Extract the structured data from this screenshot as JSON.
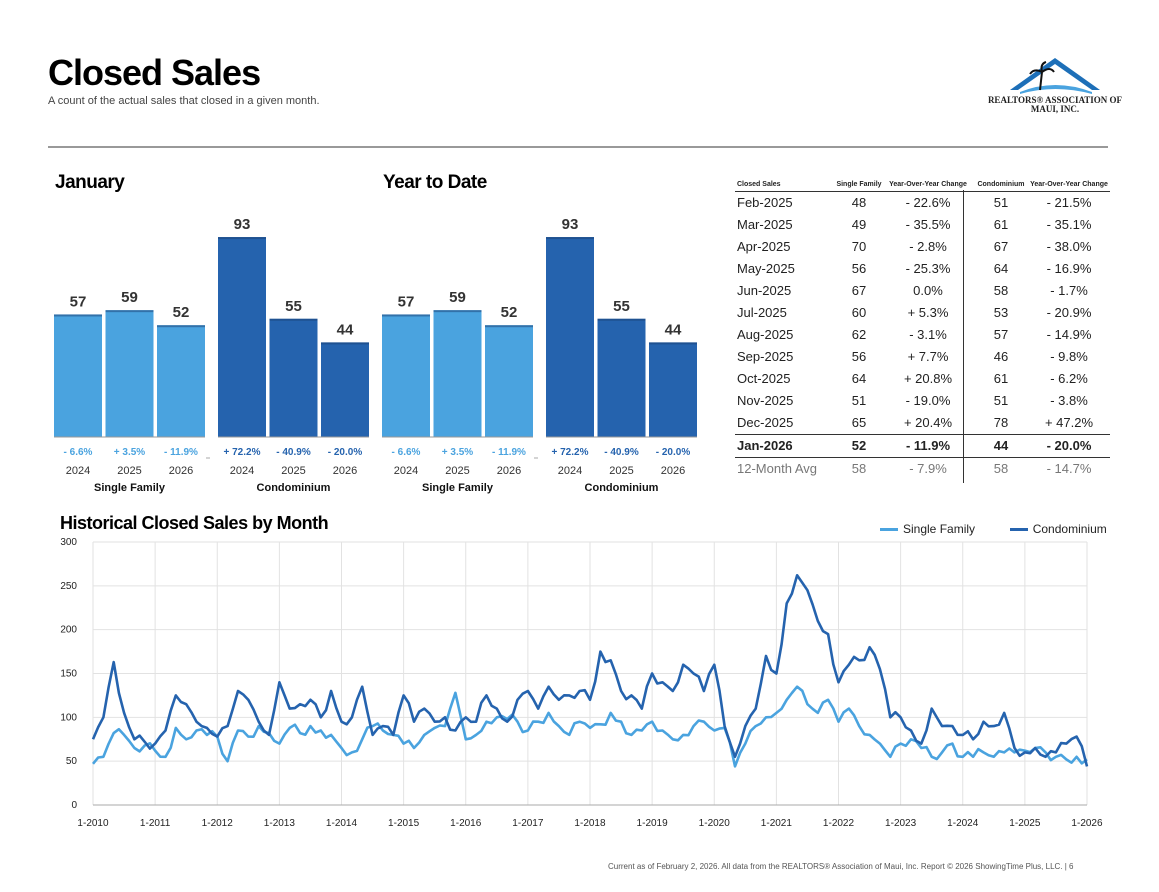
{
  "header": {
    "title": "Closed Sales",
    "subtitle": "A count of the actual sales that closed in a given month.",
    "logo_text": "REALTORS® ASSOCIATION OF MAUI, INC."
  },
  "colors": {
    "single_family": "#4aa3df",
    "condominium": "#2563ae"
  },
  "footer": "Current as of February 2, 2026. All data from the REALTORS® Association of Maui, Inc. Report © 2026 ShowingTime Plus, LLC.  |  6",
  "chart_data": [
    {
      "type": "bar",
      "title": "January",
      "groups": [
        {
          "name": "Single Family",
          "categories": [
            "2024",
            "2025",
            "2026"
          ],
          "values": [
            57,
            59,
            52
          ],
          "changes": [
            "- 6.6%",
            "+ 3.5%",
            "- 11.9%"
          ]
        },
        {
          "name": "Condominium",
          "categories": [
            "2024",
            "2025",
            "2026"
          ],
          "values": [
            93,
            55,
            44
          ],
          "changes": [
            "+ 72.2%",
            "- 40.9%",
            "- 20.0%"
          ]
        }
      ]
    },
    {
      "type": "bar",
      "title": "Year to Date",
      "groups": [
        {
          "name": "Single Family",
          "categories": [
            "2024",
            "2025",
            "2026"
          ],
          "values": [
            57,
            59,
            52
          ],
          "changes": [
            "- 6.6%",
            "+ 3.5%",
            "- 11.9%"
          ]
        },
        {
          "name": "Condominium",
          "categories": [
            "2024",
            "2025",
            "2026"
          ],
          "values": [
            93,
            55,
            44
          ],
          "changes": [
            "+ 72.2%",
            "- 40.9%",
            "- 20.0%"
          ]
        }
      ]
    },
    {
      "type": "table",
      "columns": [
        "Closed Sales",
        "Single Family",
        "Year-Over-Year Change",
        "Condominium",
        "Year-Over-Year Change"
      ],
      "rows": [
        [
          "Feb-2025",
          "48",
          "- 22.6%",
          "51",
          "- 21.5%"
        ],
        [
          "Mar-2025",
          "49",
          "- 35.5%",
          "61",
          "- 35.1%"
        ],
        [
          "Apr-2025",
          "70",
          "- 2.8%",
          "67",
          "- 38.0%"
        ],
        [
          "May-2025",
          "56",
          "- 25.3%",
          "64",
          "- 16.9%"
        ],
        [
          "Jun-2025",
          "67",
          "0.0%",
          "58",
          "- 1.7%"
        ],
        [
          "Jul-2025",
          "60",
          "+ 5.3%",
          "53",
          "- 20.9%"
        ],
        [
          "Aug-2025",
          "62",
          "- 3.1%",
          "57",
          "- 14.9%"
        ],
        [
          "Sep-2025",
          "56",
          "+ 7.7%",
          "46",
          "- 9.8%"
        ],
        [
          "Oct-2025",
          "64",
          "+ 20.8%",
          "61",
          "- 6.2%"
        ],
        [
          "Nov-2025",
          "51",
          "- 19.0%",
          "51",
          "- 3.8%"
        ],
        [
          "Dec-2025",
          "65",
          "+ 20.4%",
          "78",
          "+ 47.2%"
        ],
        [
          "Jan-2026",
          "52",
          "- 11.9%",
          "44",
          "- 20.0%"
        ]
      ],
      "avg_row": [
        "12-Month Avg",
        "58",
        "- 7.9%",
        "58",
        "- 14.7%"
      ]
    },
    {
      "type": "line",
      "title": "Historical Closed Sales by Month",
      "ylim": [
        0,
        300
      ],
      "yticks": [
        0,
        50,
        100,
        150,
        200,
        250,
        300
      ],
      "xlabels": [
        "1-2010",
        "1-2011",
        "1-2012",
        "1-2013",
        "1-2014",
        "1-2015",
        "1-2016",
        "1-2017",
        "1-2018",
        "1-2019",
        "1-2020",
        "1-2021",
        "1-2022",
        "1-2023",
        "1-2024",
        "1-2025",
        "1-2026"
      ],
      "x_start": 2010,
      "legend": [
        "Single Family",
        "Condominium"
      ],
      "series": [
        {
          "name": "Single Family",
          "anchors": [
            [
              0,
              47
            ],
            [
              2,
              55
            ],
            [
              4,
              82
            ],
            [
              6,
              80
            ],
            [
              8,
              65
            ],
            [
              10,
              68
            ],
            [
              12,
              62
            ],
            [
              14,
              55
            ],
            [
              16,
              88
            ],
            [
              18,
              75
            ],
            [
              20,
              85
            ],
            [
              22,
              80
            ],
            [
              24,
              78
            ],
            [
              26,
              50
            ],
            [
              28,
              85
            ],
            [
              30,
              78
            ],
            [
              32,
              90
            ],
            [
              34,
              82
            ],
            [
              36,
              70
            ],
            [
              38,
              88
            ],
            [
              40,
              82
            ],
            [
              42,
              90
            ],
            [
              44,
              85
            ],
            [
              46,
              80
            ],
            [
              48,
              65
            ],
            [
              50,
              60
            ],
            [
              52,
              75
            ],
            [
              54,
              90
            ],
            [
              56,
              85
            ],
            [
              58,
              80
            ],
            [
              60,
              70
            ],
            [
              62,
              65
            ],
            [
              64,
              80
            ],
            [
              66,
              88
            ],
            [
              68,
              90
            ],
            [
              70,
              128
            ],
            [
              72,
              75
            ],
            [
              74,
              80
            ],
            [
              76,
              95
            ],
            [
              78,
              100
            ],
            [
              80,
              98
            ],
            [
              82,
              95
            ],
            [
              84,
              85
            ],
            [
              86,
              95
            ],
            [
              88,
              105
            ],
            [
              90,
              90
            ],
            [
              92,
              80
            ],
            [
              94,
              95
            ],
            [
              96,
              88
            ],
            [
              98,
              92
            ],
            [
              100,
              105
            ],
            [
              102,
              95
            ],
            [
              104,
              80
            ],
            [
              106,
              85
            ],
            [
              108,
              95
            ],
            [
              110,
              85
            ],
            [
              112,
              75
            ],
            [
              114,
              80
            ],
            [
              116,
              90
            ],
            [
              118,
              95
            ],
            [
              120,
              85
            ],
            [
              122,
              88
            ],
            [
              124,
              44
            ],
            [
              126,
              70
            ],
            [
              128,
              90
            ],
            [
              130,
              100
            ],
            [
              132,
              105
            ],
            [
              134,
              120
            ],
            [
              136,
              135
            ],
            [
              138,
              115
            ],
            [
              140,
              105
            ],
            [
              142,
              120
            ],
            [
              144,
              95
            ],
            [
              146,
              110
            ],
            [
              148,
              90
            ],
            [
              150,
              80
            ],
            [
              152,
              70
            ],
            [
              154,
              55
            ],
            [
              156,
              70
            ],
            [
              158,
              75
            ],
            [
              160,
              65
            ],
            [
              162,
              55
            ],
            [
              164,
              60
            ],
            [
              166,
              70
            ],
            [
              168,
              55
            ],
            [
              170,
              55
            ],
            [
              172,
              60
            ],
            [
              174,
              55
            ],
            [
              176,
              60
            ],
            [
              178,
              60
            ],
            [
              180,
              62
            ],
            [
              182,
              65
            ],
            [
              184,
              60
            ],
            [
              186,
              55
            ],
            [
              188,
              52
            ],
            [
              190,
              55
            ],
            [
              192,
              52
            ]
          ]
        },
        {
          "name": "Condominium",
          "anchors": [
            [
              0,
              75
            ],
            [
              2,
              100
            ],
            [
              4,
              163
            ],
            [
              6,
              105
            ],
            [
              8,
              75
            ],
            [
              10,
              72
            ],
            [
              12,
              70
            ],
            [
              14,
              85
            ],
            [
              16,
              125
            ],
            [
              18,
              115
            ],
            [
              20,
              95
            ],
            [
              22,
              88
            ],
            [
              24,
              78
            ],
            [
              26,
              90
            ],
            [
              28,
              130
            ],
            [
              30,
              120
            ],
            [
              32,
              95
            ],
            [
              34,
              80
            ],
            [
              36,
              140
            ],
            [
              38,
              110
            ],
            [
              40,
              115
            ],
            [
              42,
              120
            ],
            [
              44,
              100
            ],
            [
              46,
              130
            ],
            [
              48,
              95
            ],
            [
              50,
              100
            ],
            [
              52,
              135
            ],
            [
              54,
              80
            ],
            [
              56,
              90
            ],
            [
              58,
              80
            ],
            [
              60,
              125
            ],
            [
              62,
              95
            ],
            [
              64,
              110
            ],
            [
              66,
              95
            ],
            [
              68,
              100
            ],
            [
              70,
              85
            ],
            [
              72,
              100
            ],
            [
              74,
              95
            ],
            [
              76,
              125
            ],
            [
              78,
              110
            ],
            [
              80,
              95
            ],
            [
              82,
              120
            ],
            [
              84,
              130
            ],
            [
              86,
              110
            ],
            [
              88,
              135
            ],
            [
              90,
              120
            ],
            [
              92,
              125
            ],
            [
              94,
              130
            ],
            [
              96,
              120
            ],
            [
              98,
              175
            ],
            [
              100,
              165
            ],
            [
              102,
              130
            ],
            [
              104,
              125
            ],
            [
              106,
              110
            ],
            [
              108,
              150
            ],
            [
              110,
              140
            ],
            [
              112,
              130
            ],
            [
              114,
              160
            ],
            [
              116,
              150
            ],
            [
              118,
              130
            ],
            [
              120,
              160
            ],
            [
              122,
              90
            ],
            [
              124,
              55
            ],
            [
              126,
              90
            ],
            [
              128,
              110
            ],
            [
              130,
              170
            ],
            [
              132,
              150
            ],
            [
              134,
              230
            ],
            [
              136,
              262
            ],
            [
              138,
              245
            ],
            [
              140,
              210
            ],
            [
              142,
              195
            ],
            [
              144,
              140
            ],
            [
              146,
              160
            ],
            [
              148,
              165
            ],
            [
              150,
              180
            ],
            [
              152,
              155
            ],
            [
              154,
              100
            ],
            [
              156,
              100
            ],
            [
              158,
              85
            ],
            [
              160,
              70
            ],
            [
              162,
              110
            ],
            [
              164,
              90
            ],
            [
              166,
              90
            ],
            [
              168,
              80
            ],
            [
              170,
              75
            ],
            [
              172,
              95
            ],
            [
              174,
              90
            ],
            [
              176,
              105
            ],
            [
              178,
              65
            ],
            [
              180,
              60
            ],
            [
              182,
              65
            ],
            [
              184,
              55
            ],
            [
              186,
              60
            ],
            [
              188,
              70
            ],
            [
              190,
              78
            ],
            [
              192,
              44
            ]
          ]
        }
      ]
    }
  ]
}
